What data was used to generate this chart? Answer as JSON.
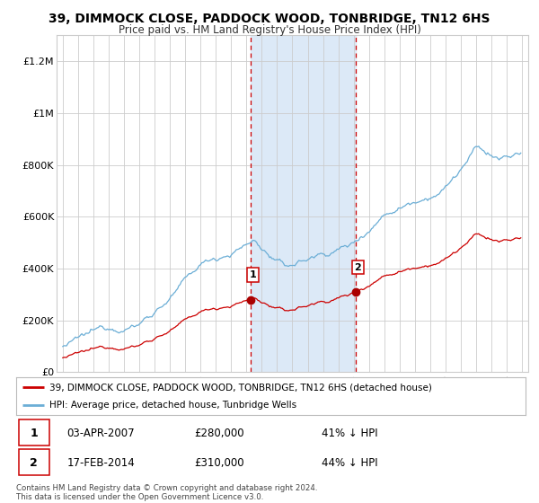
{
  "title": "39, DIMMOCK CLOSE, PADDOCK WOOD, TONBRIDGE, TN12 6HS",
  "subtitle": "Price paid vs. HM Land Registry's House Price Index (HPI)",
  "title_fontsize": 10,
  "subtitle_fontsize": 8.5,
  "background_color": "#ffffff",
  "plot_bg_color": "#ffffff",
  "ylim": [
    0,
    1300000
  ],
  "yticks": [
    0,
    200000,
    400000,
    600000,
    800000,
    1000000,
    1200000
  ],
  "ytick_labels": [
    "£0",
    "£200K",
    "£400K",
    "£600K",
    "£800K",
    "£1M",
    "£1.2M"
  ],
  "sale1_year": 2007.25,
  "sale1_price": 280000,
  "sale2_year": 2014.12,
  "sale2_price": 310000,
  "highlight_shade": "#dce9f7",
  "hpi_line_color": "#6baed6",
  "price_line_color": "#cc0000",
  "sale_dot_color": "#aa0000",
  "legend_line1": "39, DIMMOCK CLOSE, PADDOCK WOOD, TONBRIDGE, TN12 6HS (detached house)",
  "legend_line2": "HPI: Average price, detached house, Tunbridge Wells",
  "table_row1": [
    "1",
    "03-APR-2007",
    "£280,000",
    "41% ↓ HPI"
  ],
  "table_row2": [
    "2",
    "17-FEB-2014",
    "£310,000",
    "44% ↓ HPI"
  ],
  "footnote": "Contains HM Land Registry data © Crown copyright and database right 2024.\nThis data is licensed under the Open Government Licence v3.0.",
  "grid_color": "#cccccc"
}
